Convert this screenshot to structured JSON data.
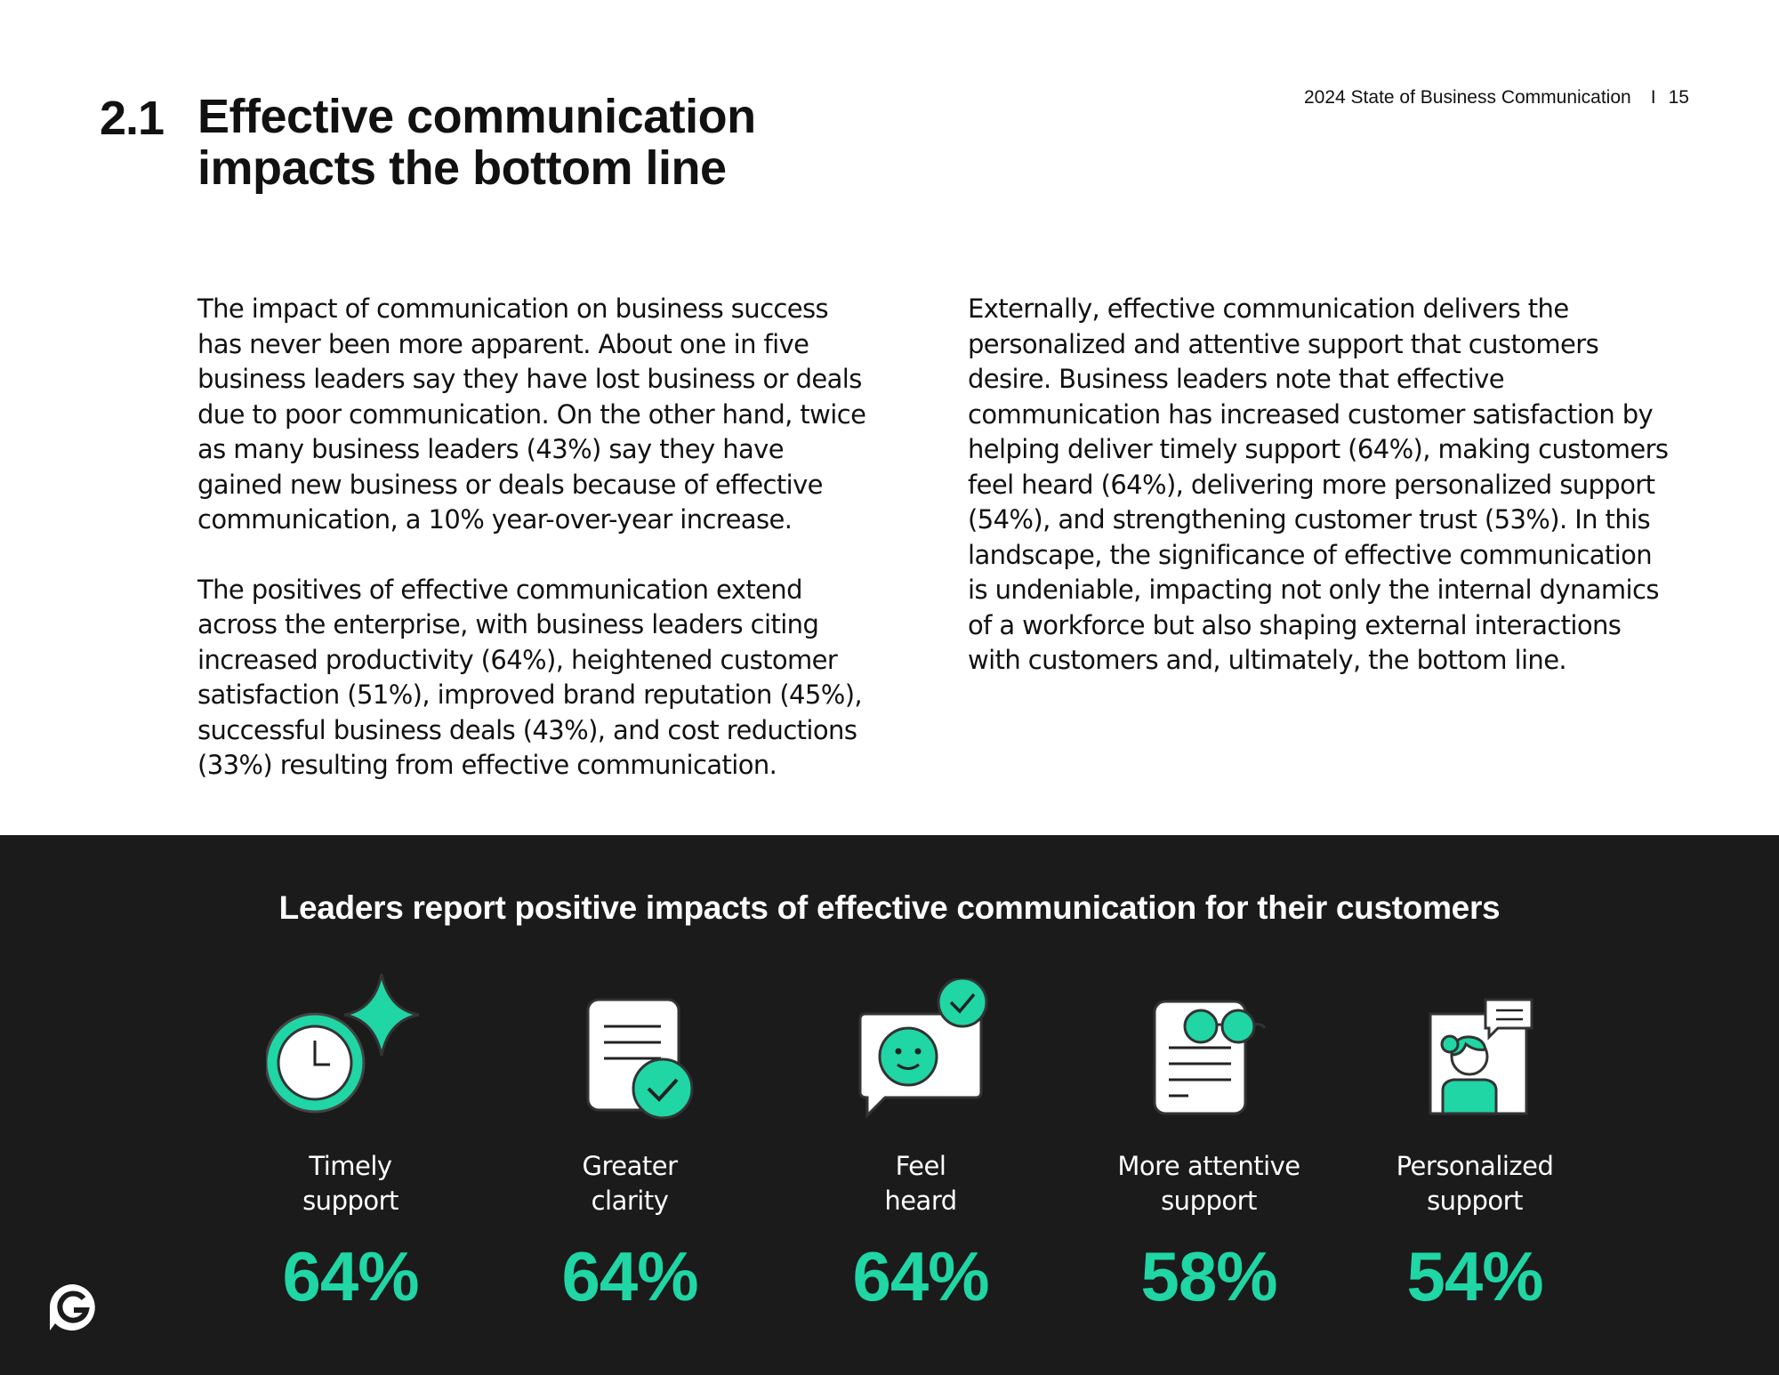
{
  "header": {
    "report_title": "2024 State of Business Communication",
    "separator": "I",
    "page_number": "15"
  },
  "section": {
    "number": "2.1",
    "title": "Effective communication impacts the bottom line"
  },
  "body": {
    "left_p1": "The impact of communication on business success has never been more apparent. About one in five business leaders say they have lost business or deals due to poor communication. On the other hand, twice as many business leaders (43%) say they have gained new business or deals because of effective communication, a 10% year-over-year increase.",
    "left_p2": "The positives of effective communication extend across the enterprise, with business leaders citing increased productivity (64%), heightened customer satisfaction (51%), improved brand reputation (45%), successful business deals (43%), and cost reductions (33%) resulting from effective communication.",
    "right_p1": "Externally, effective communication delivers the personalized and attentive support that customers desire. Business leaders note that effective communication has increased customer satisfaction by helping deliver timely support (64%), making customers feel heard (64%), delivering more personalized support (54%), and strengthening customer trust (53%). In this landscape, the significance of effective communication is undeniable, impacting not only the internal dynamics of a workforce but also shaping external interactions with customers and, ultimately, the bottom line."
  },
  "infographic": {
    "title": "Leaders report positive impacts of effective communication for their customers",
    "accent_color": "#1fd6a4",
    "stats": [
      {
        "icon": "clock-sparkle-icon",
        "label": "Timely\nsupport",
        "value": "64%"
      },
      {
        "icon": "document-check-icon",
        "label": "Greater\nclarity",
        "value": "64%"
      },
      {
        "icon": "smiley-chat-icon",
        "label": "Feel\nheard",
        "value": "64%"
      },
      {
        "icon": "document-glasses-icon",
        "label": "More attentive\nsupport",
        "value": "58%"
      },
      {
        "icon": "person-chat-icon",
        "label": "Personalized\nsupport",
        "value": "54%"
      }
    ]
  },
  "logo": {
    "icon": "grammarly-logo-icon"
  }
}
